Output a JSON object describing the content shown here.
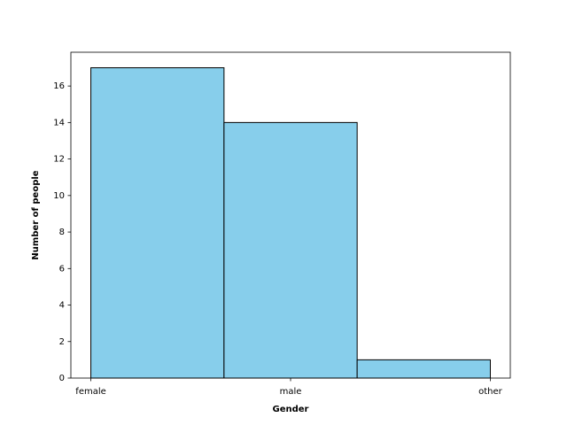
{
  "chart_data": {
    "type": "histogram",
    "x_label": "Gender",
    "y_label": "Number of people",
    "bins": [
      0,
      0.6667,
      1.3333,
      2
    ],
    "values": [
      17,
      14,
      1
    ],
    "color": "#87ceeb",
    "edgecolor": "#000000",
    "xlim": [
      -0.1,
      2.1
    ],
    "ylim": [
      0,
      17.85
    ],
    "xticks": [
      {
        "value": 0,
        "label": "female"
      },
      {
        "value": 1,
        "label": "male"
      },
      {
        "value": 2,
        "label": "other"
      }
    ],
    "yticks": [
      0,
      2,
      4,
      6,
      8,
      10,
      12,
      14,
      16
    ],
    "grid": false
  }
}
